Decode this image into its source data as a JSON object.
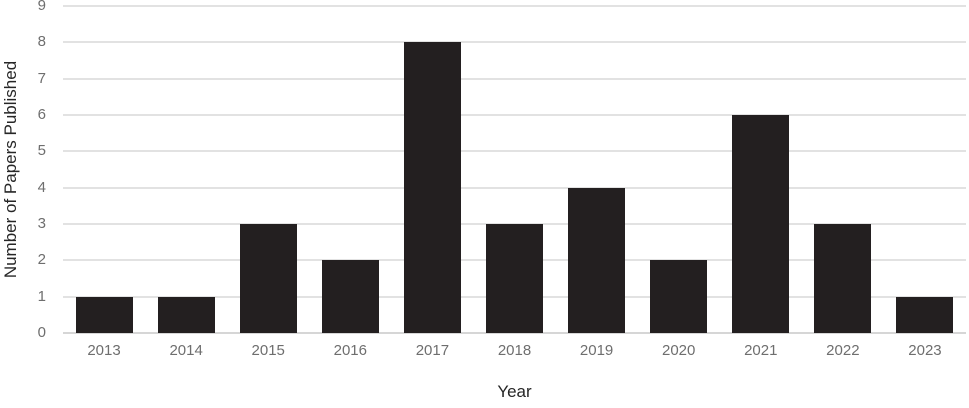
{
  "chart_data": {
    "type": "bar",
    "categories": [
      "2013",
      "2014",
      "2015",
      "2016",
      "2017",
      "2018",
      "2019",
      "2020",
      "2021",
      "2022",
      "2023"
    ],
    "values": [
      1,
      1,
      3,
      2,
      8,
      3,
      4,
      2,
      6,
      3,
      1
    ],
    "title": "",
    "xlabel": "Year",
    "ylabel": "Number of Papers Published",
    "ylim": [
      0,
      9
    ],
    "ytick_step": 1,
    "grid": true,
    "legend": "none",
    "colors": {
      "bar": "#231F20",
      "gridline": "#E2E2E2",
      "axis_line": "#D6D6D6",
      "tick_label": "#6E6E6E",
      "axis_label": "#262626",
      "background": "#FFFFFF"
    }
  }
}
